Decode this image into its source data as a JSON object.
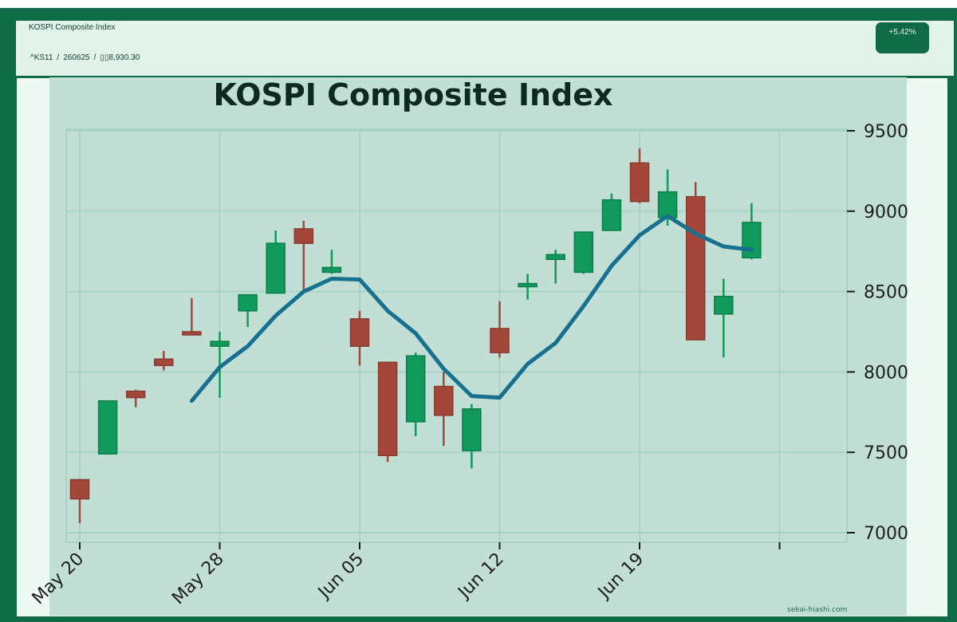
{
  "header": {
    "title": "KOSPI Composite Index",
    "symbol": "^KS11",
    "date": "260625",
    "value": "8,930.30",
    "value_prefix": "▯▯",
    "sep": "/",
    "change": "+5.42%"
  },
  "watermark": "sekai-hiashi.com",
  "colors": {
    "up": "#119a5c",
    "down": "#a3473a",
    "line": "#17708f",
    "plot_bg": "#c2dfd5",
    "grid": "#a9d2c6"
  },
  "chart_data": {
    "type": "candlestick",
    "title": "KOSPI Composite Index",
    "y_axis_position": "right",
    "ylim": [
      6950,
      9550
    ],
    "yticks": [
      7000,
      7500,
      8000,
      8500,
      9000,
      9500
    ],
    "xticks": [
      {
        "label": "May 20",
        "index": 0
      },
      {
        "label": "May 28",
        "index": 5
      },
      {
        "label": "Jun 05",
        "index": 10
      },
      {
        "label": "Jun 12",
        "index": 15
      },
      {
        "label": "Jun 19",
        "index": 20
      },
      {
        "label": "",
        "index": 25
      }
    ],
    "grid": true,
    "candles": [
      {
        "o": 7330,
        "h": 7330,
        "l": 7060,
        "c": 7210
      },
      {
        "o": 7490,
        "h": 7820,
        "l": 7490,
        "c": 7820
      },
      {
        "o": 7880,
        "h": 7890,
        "l": 7780,
        "c": 7840
      },
      {
        "o": 8080,
        "h": 8130,
        "l": 8010,
        "c": 8040
      },
      {
        "o": 8250,
        "h": 8460,
        "l": 8230,
        "c": 8230
      },
      {
        "o": 8160,
        "h": 8250,
        "l": 7840,
        "c": 8190
      },
      {
        "o": 8380,
        "h": 8480,
        "l": 8280,
        "c": 8480
      },
      {
        "o": 8490,
        "h": 8880,
        "l": 8490,
        "c": 8800
      },
      {
        "o": 8890,
        "h": 8940,
        "l": 8510,
        "c": 8800
      },
      {
        "o": 8620,
        "h": 8760,
        "l": 8610,
        "c": 8650
      },
      {
        "o": 8330,
        "h": 8380,
        "l": 8040,
        "c": 8160
      },
      {
        "o": 8060,
        "h": 8060,
        "l": 7440,
        "c": 7480
      },
      {
        "o": 7690,
        "h": 8120,
        "l": 7600,
        "c": 8100
      },
      {
        "o": 7910,
        "h": 8000,
        "l": 7540,
        "c": 7730
      },
      {
        "o": 7510,
        "h": 7800,
        "l": 7400,
        "c": 7770
      },
      {
        "o": 8270,
        "h": 8440,
        "l": 8090,
        "c": 8120
      },
      {
        "o": 8530,
        "h": 8610,
        "l": 8450,
        "c": 8550
      },
      {
        "o": 8700,
        "h": 8760,
        "l": 8550,
        "c": 8730
      },
      {
        "o": 8620,
        "h": 8870,
        "l": 8610,
        "c": 8870
      },
      {
        "o": 8880,
        "h": 9110,
        "l": 8880,
        "c": 9070
      },
      {
        "o": 9300,
        "h": 9390,
        "l": 9050,
        "c": 9060
      },
      {
        "o": 8960,
        "h": 9260,
        "l": 8910,
        "c": 9120
      },
      {
        "o": 9090,
        "h": 9180,
        "l": 8200,
        "c": 8200
      },
      {
        "o": 8360,
        "h": 8580,
        "l": 8090,
        "c": 8470
      },
      {
        "o": 8710,
        "h": 9050,
        "l": 8700,
        "c": 8930
      }
    ],
    "moving_average": [
      {
        "i": 4,
        "v": 7820
      },
      {
        "i": 5,
        "v": 8030
      },
      {
        "i": 6,
        "v": 8160
      },
      {
        "i": 7,
        "v": 8350
      },
      {
        "i": 8,
        "v": 8500
      },
      {
        "i": 9,
        "v": 8580
      },
      {
        "i": 10,
        "v": 8575
      },
      {
        "i": 11,
        "v": 8380
      },
      {
        "i": 12,
        "v": 8240
      },
      {
        "i": 13,
        "v": 8020
      },
      {
        "i": 14,
        "v": 7850
      },
      {
        "i": 15,
        "v": 7840
      },
      {
        "i": 16,
        "v": 8050
      },
      {
        "i": 17,
        "v": 8180
      },
      {
        "i": 18,
        "v": 8410
      },
      {
        "i": 19,
        "v": 8660
      },
      {
        "i": 20,
        "v": 8850
      },
      {
        "i": 21,
        "v": 8970
      },
      {
        "i": 22,
        "v": 8860
      },
      {
        "i": 23,
        "v": 8780
      },
      {
        "i": 24,
        "v": 8760
      }
    ]
  }
}
